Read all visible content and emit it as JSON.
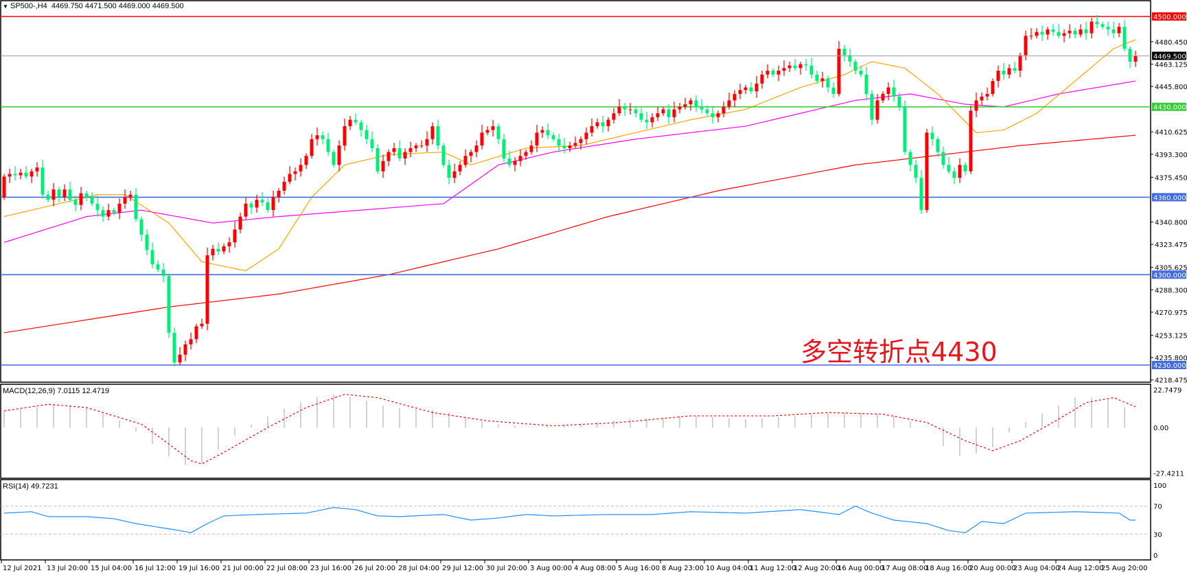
{
  "header": {
    "symbol": "SP500-,H4",
    "ohlc": "4469.750 4471.500 4469.000 4469.500"
  },
  "annotation": "多空转折点4430",
  "colors": {
    "bull": "#ff0000",
    "bear": "#00ee77",
    "ma_fast": "#ffa500",
    "ma_mid": "#ff00ff",
    "ma_slow": "#ff0000",
    "level_red": "#ff0000",
    "level_green": "#32cd32",
    "level_blue": "#4169e1",
    "macd_hist": "#c0c0c0",
    "macd_signal": "#ff0000",
    "rsi": "#1e90ff"
  },
  "chart_data": [
    {
      "type": "candlestick",
      "title": "SP500-,H4",
      "ylim": [
        4210,
        4510
      ],
      "price_ticks": [
        "4480.450",
        "4463.125",
        "4445.800",
        "4410.625",
        "4393.300",
        "4375.450",
        "4340.800",
        "4323.475",
        "4305.625",
        "4288.300",
        "4270.975",
        "4253.125",
        "4235.800",
        "4218.475"
      ],
      "levels": [
        {
          "value": 4500,
          "label": "4500.000",
          "color": "level_red"
        },
        {
          "value": 4430,
          "label": "4430.000",
          "color": "level_green"
        },
        {
          "value": 4360,
          "label": "4360.000",
          "color": "level_blue"
        },
        {
          "value": 4300,
          "label": "4300.000",
          "color": "level_blue"
        },
        {
          "value": 4230,
          "label": "4230.000",
          "color": "level_blue"
        }
      ],
      "current_price": {
        "value": 4469.5,
        "label": "4469.500"
      },
      "first_open": 4360,
      "close": [
        4376,
        4378,
        4377,
        4379,
        4376,
        4380,
        4383,
        4362,
        4358,
        4366,
        4360,
        4366,
        4358,
        4354,
        4363,
        4360,
        4355,
        4350,
        4345,
        4350,
        4348,
        4355,
        4360,
        4362,
        4343,
        4331,
        4319,
        4308,
        4304,
        4299,
        4255,
        4232,
        4238,
        4246,
        4250,
        4260,
        4262,
        4315,
        4320,
        4318,
        4322,
        4325,
        4335,
        4345,
        4355,
        4352,
        4358,
        4356,
        4350,
        4360,
        4365,
        4372,
        4378,
        4380,
        4385,
        4392,
        4405,
        4408,
        4405,
        4395,
        4385,
        4400,
        4415,
        4420,
        4418,
        4412,
        4405,
        4398,
        4380,
        4388,
        4395,
        4398,
        4390,
        4395,
        4398,
        4400,
        4400,
        4405,
        4415,
        4400,
        4385,
        4375,
        4380,
        4385,
        4392,
        4395,
        4400,
        4410,
        4412,
        4415,
        4405,
        4390,
        4385,
        4388,
        4392,
        4395,
        4400,
        4410,
        4412,
        4408,
        4405,
        4400,
        4398,
        4400,
        4402,
        4405,
        4410,
        4415,
        4418,
        4415,
        4420,
        4425,
        4430,
        4428,
        4428,
        4425,
        4420,
        4418,
        4422,
        4425,
        4428,
        4422,
        4428,
        4430,
        4432,
        4435,
        4430,
        4428,
        4425,
        4422,
        4425,
        4430,
        4435,
        4440,
        4443,
        4445,
        4442,
        4448,
        4455,
        4458,
        4455,
        4458,
        4460,
        4462,
        4460,
        4463,
        4462,
        4455,
        4450,
        4452,
        4445,
        4440,
        4475,
        4470,
        4465,
        4458,
        4455,
        4440,
        4420,
        4435,
        4440,
        4445,
        4438,
        4430,
        4395,
        4385,
        4375,
        4350,
        4410,
        4405,
        4395,
        4385,
        4380,
        4375,
        4385,
        4380,
        4427,
        4435,
        4438,
        4440,
        4450,
        4458,
        4455,
        4460,
        4458,
        4470,
        4485,
        4485,
        4488,
        4486,
        4490,
        4488,
        4485,
        4487,
        4489,
        4486,
        4490,
        4487,
        4496,
        4494,
        4492,
        4490,
        4487,
        4492,
        4475,
        4465,
        4469.5
      ],
      "moving_averages": {
        "fast": [
          [
            0,
            4345
          ],
          [
            17,
            4362
          ],
          [
            22,
            4362
          ],
          [
            30,
            4340
          ],
          [
            36,
            4310
          ],
          [
            44,
            4303
          ],
          [
            50,
            4320
          ],
          [
            56,
            4360
          ],
          [
            62,
            4385
          ],
          [
            70,
            4393
          ],
          [
            80,
            4395
          ],
          [
            85,
            4385
          ],
          [
            95,
            4398
          ],
          [
            105,
            4400
          ],
          [
            115,
            4410
          ],
          [
            125,
            4420
          ],
          [
            135,
            4428
          ],
          [
            145,
            4445
          ],
          [
            153,
            4455
          ],
          [
            158,
            4465
          ],
          [
            164,
            4460
          ],
          [
            170,
            4440
          ],
          [
            177,
            4410
          ],
          [
            182,
            4412
          ],
          [
            188,
            4425
          ],
          [
            195,
            4450
          ],
          [
            202,
            4475
          ],
          [
            206,
            4482
          ]
        ],
        "mid": [
          [
            0,
            4325
          ],
          [
            15,
            4345
          ],
          [
            25,
            4350
          ],
          [
            38,
            4340
          ],
          [
            50,
            4345
          ],
          [
            65,
            4350
          ],
          [
            80,
            4355
          ],
          [
            90,
            4385
          ],
          [
            100,
            4395
          ],
          [
            115,
            4405
          ],
          [
            135,
            4415
          ],
          [
            155,
            4435
          ],
          [
            165,
            4440
          ],
          [
            175,
            4432
          ],
          [
            182,
            4430
          ],
          [
            192,
            4440
          ],
          [
            206,
            4450
          ]
        ],
        "slow": [
          [
            0,
            4255
          ],
          [
            30,
            4275
          ],
          [
            50,
            4285
          ],
          [
            70,
            4300
          ],
          [
            90,
            4320
          ],
          [
            110,
            4345
          ],
          [
            130,
            4365
          ],
          [
            155,
            4385
          ],
          [
            175,
            4395
          ],
          [
            185,
            4400
          ],
          [
            206,
            4408
          ]
        ]
      },
      "time_labels": [
        "12 Jul 2021",
        "13 Jul 20:00",
        "15 Jul 04:00",
        "16 Jul 12:00",
        "19 Jul 16:00",
        "21 Jul 00:00",
        "22 Jul 08:00",
        "23 Jul 16:00",
        "26 Jul 20:00",
        "28 Jul 04:00",
        "29 Jul 12:00",
        "30 Jul 20:00",
        "3 Aug 00:00",
        "4 Aug 08:00",
        "5 Aug 16:00",
        "8 Aug 23:00",
        "10 Aug 04:00",
        "11 Aug 12:00",
        "12 Aug 20:00",
        "16 Aug 00:00",
        "17 Aug 08:00",
        "18 Aug 16:00",
        "20 Aug 00:00",
        "23 Aug 04:00",
        "24 Aug 12:00",
        "25 Aug 20:00"
      ]
    },
    {
      "type": "macd",
      "label": "MACD(12,26,9) 7.0115 12.4719",
      "ylim": [
        -27.4211,
        22.7479
      ],
      "ticks": [
        "22.7479",
        "0.00",
        "-27.4211"
      ],
      "histogram": [
        [
          0,
          10
        ],
        [
          10,
          14
        ],
        [
          15,
          12
        ],
        [
          20,
          6
        ],
        [
          23,
          0
        ],
        [
          27,
          -10
        ],
        [
          31,
          -20
        ],
        [
          34,
          -24
        ],
        [
          37,
          -20
        ],
        [
          40,
          -10
        ],
        [
          44,
          0
        ],
        [
          50,
          10
        ],
        [
          56,
          18
        ],
        [
          60,
          20
        ],
        [
          64,
          18
        ],
        [
          70,
          12
        ],
        [
          80,
          10
        ],
        [
          85,
          5
        ],
        [
          90,
          2
        ],
        [
          95,
          0
        ],
        [
          100,
          1
        ],
        [
          105,
          2
        ],
        [
          110,
          4
        ],
        [
          115,
          5
        ],
        [
          125,
          7
        ],
        [
          135,
          5
        ],
        [
          145,
          7
        ],
        [
          150,
          9
        ],
        [
          155,
          9
        ],
        [
          162,
          7
        ],
        [
          168,
          0
        ],
        [
          172,
          -15
        ],
        [
          175,
          -18
        ],
        [
          180,
          -12
        ],
        [
          184,
          0
        ],
        [
          190,
          10
        ],
        [
          195,
          18
        ],
        [
          200,
          18
        ],
        [
          203,
          15
        ],
        [
          206,
          7
        ]
      ],
      "signal": [
        [
          0,
          10
        ],
        [
          8,
          14
        ],
        [
          15,
          12
        ],
        [
          25,
          2
        ],
        [
          30,
          -10
        ],
        [
          34,
          -20
        ],
        [
          36,
          -22
        ],
        [
          40,
          -15
        ],
        [
          48,
          0
        ],
        [
          55,
          12
        ],
        [
          62,
          20
        ],
        [
          68,
          18
        ],
        [
          78,
          9
        ],
        [
          88,
          4
        ],
        [
          100,
          1
        ],
        [
          112,
          3
        ],
        [
          125,
          7
        ],
        [
          140,
          7
        ],
        [
          150,
          9
        ],
        [
          160,
          8
        ],
        [
          168,
          3
        ],
        [
          175,
          -8
        ],
        [
          180,
          -14
        ],
        [
          185,
          -8
        ],
        [
          192,
          5
        ],
        [
          197,
          15
        ],
        [
          202,
          18
        ],
        [
          206,
          12.5
        ]
      ]
    },
    {
      "type": "line",
      "label": "RSI(14) 49.7231",
      "ylim": [
        0,
        100
      ],
      "ticks": [
        "100",
        "70",
        "30",
        "0"
      ],
      "levels": [
        70,
        30
      ],
      "values": [
        [
          0,
          60
        ],
        [
          5,
          62
        ],
        [
          8,
          55
        ],
        [
          15,
          55
        ],
        [
          20,
          52
        ],
        [
          24,
          45
        ],
        [
          28,
          40
        ],
        [
          32,
          35
        ],
        [
          34,
          32
        ],
        [
          37,
          45
        ],
        [
          40,
          56
        ],
        [
          46,
          58
        ],
        [
          55,
          60
        ],
        [
          60,
          68
        ],
        [
          64,
          65
        ],
        [
          68,
          56
        ],
        [
          72,
          55
        ],
        [
          80,
          58
        ],
        [
          85,
          50
        ],
        [
          90,
          53
        ],
        [
          95,
          58
        ],
        [
          100,
          56
        ],
        [
          110,
          58
        ],
        [
          118,
          58
        ],
        [
          125,
          62
        ],
        [
          135,
          60
        ],
        [
          145,
          65
        ],
        [
          152,
          58
        ],
        [
          155,
          70
        ],
        [
          158,
          60
        ],
        [
          162,
          50
        ],
        [
          168,
          45
        ],
        [
          172,
          35
        ],
        [
          175,
          32
        ],
        [
          178,
          48
        ],
        [
          182,
          45
        ],
        [
          186,
          60
        ],
        [
          195,
          62
        ],
        [
          203,
          60
        ],
        [
          205,
          50
        ],
        [
          206,
          50
        ]
      ]
    }
  ]
}
